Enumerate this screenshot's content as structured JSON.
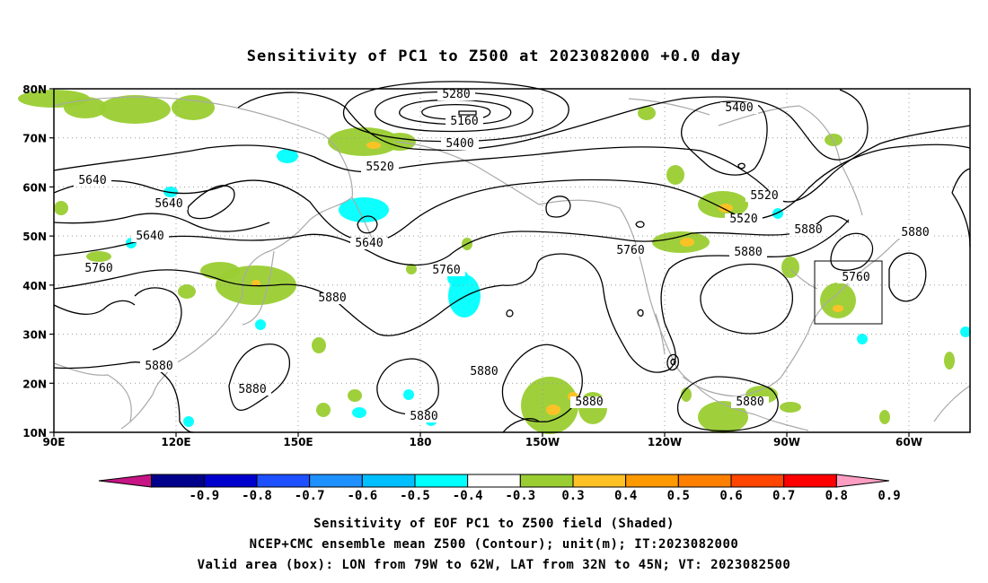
{
  "title": "Sensitivity of PC1 to Z500 at 2023082000 +0.0 day",
  "map": {
    "lat_range": [
      10,
      80
    ],
    "lon_range_east": [
      90,
      315
    ],
    "lat_ticks": [
      "80N",
      "70N",
      "60N",
      "50N",
      "40N",
      "30N",
      "20N",
      "10N"
    ],
    "lon_ticks": [
      "90E",
      "120E",
      "150E",
      "180",
      "150W",
      "120W",
      "90W",
      "60W"
    ],
    "colors": {
      "contour": "#000000",
      "coast": "#a9a9a9",
      "pos_shade": "#9acd32",
      "pos_strong": "#ffc125",
      "neg_shade": "#00ffff",
      "neg_strong": "#00ccff"
    },
    "contour_labels": [
      "5280",
      "5160",
      "5400",
      "5400",
      "5520",
      "5640",
      "5520",
      "5640",
      "5640",
      "5760",
      "5520",
      "5640",
      "5760",
      "5760",
      "5880",
      "5760",
      "5880",
      "5880",
      "5880",
      "5880",
      "5880",
      "5880",
      "5880",
      "5880",
      "5880"
    ],
    "valid_box": {
      "lon_west": [
        79,
        62
      ],
      "lat_north": [
        32,
        45
      ]
    }
  },
  "colorbar": {
    "colors": [
      "#c71585",
      "#00008b",
      "#0000cd",
      "#1e50ff",
      "#1e90ff",
      "#00bfff",
      "#00ffff",
      "#ffffff",
      "#9acd32",
      "#ffc125",
      "#ff9900",
      "#ff7f00",
      "#ff4500",
      "#ff0000",
      "#ff9ec2"
    ],
    "labels": [
      "-0.9",
      "-0.8",
      "-0.7",
      "-0.6",
      "-0.5",
      "-0.4",
      "-0.3",
      "0.3",
      "0.4",
      "0.5",
      "0.6",
      "0.7",
      "0.8",
      "0.9"
    ]
  },
  "footer": [
    "Sensitivity of EOF PC1 to Z500 field (Shaded)",
    "NCEP+CMC ensemble mean Z500 (Contour); unit(m); IT:2023082000",
    "Valid area (box): LON from 79W to 62W, LAT from 32N to 45N; VT: 2023082500"
  ]
}
